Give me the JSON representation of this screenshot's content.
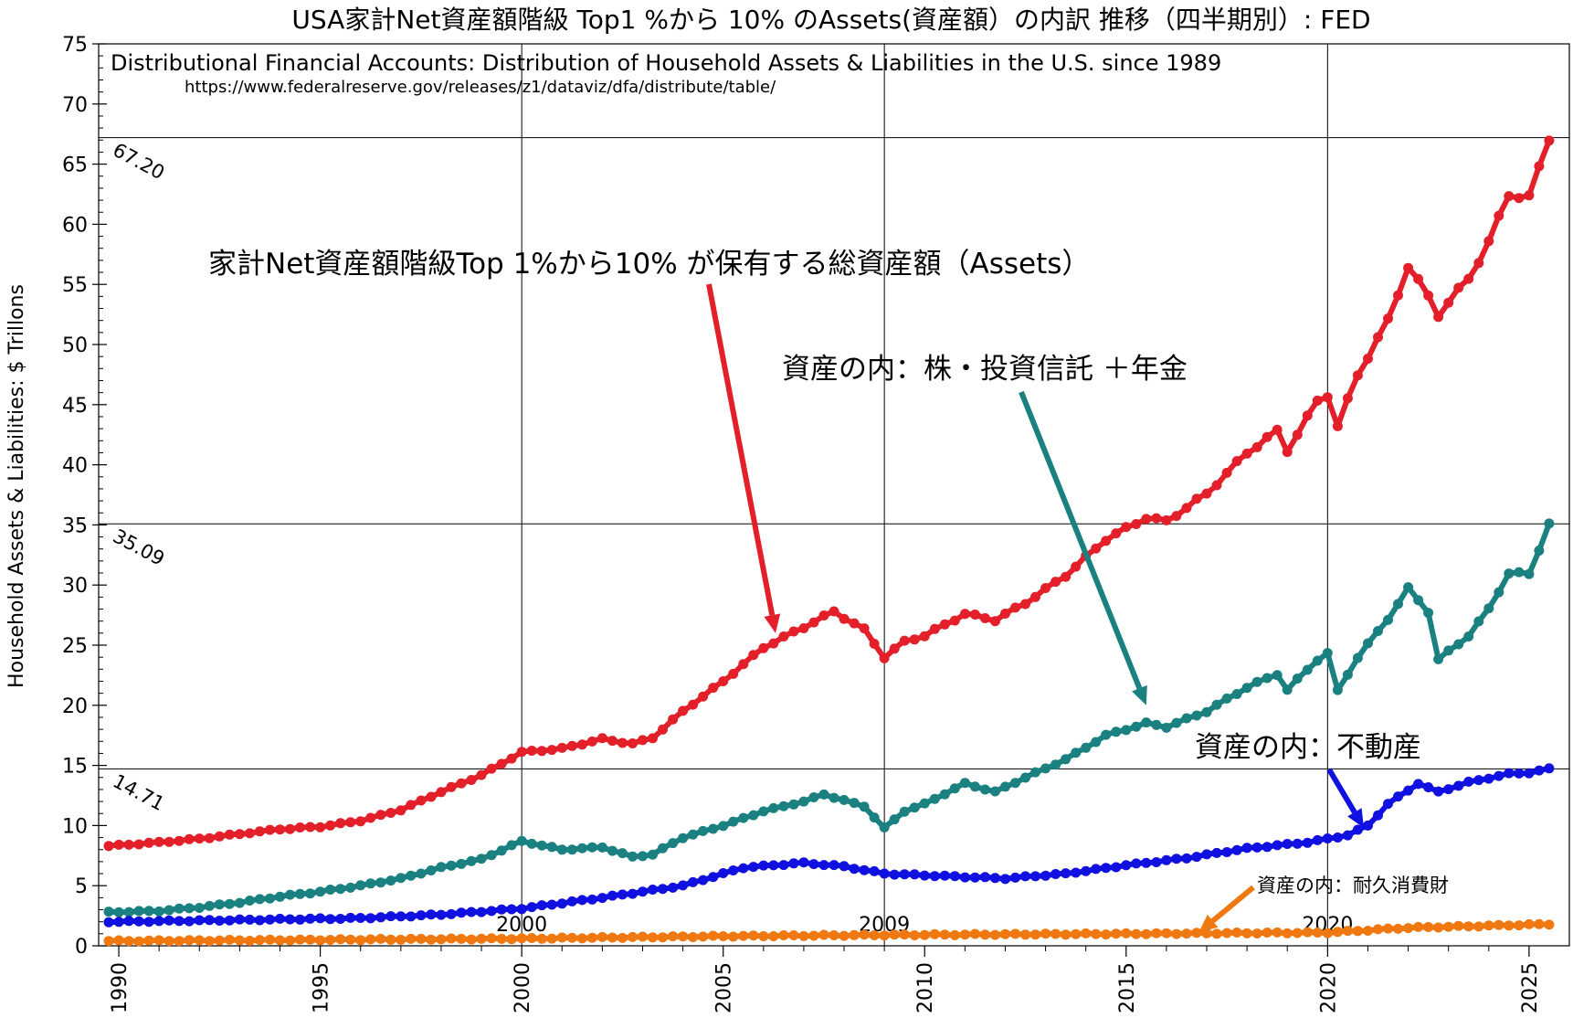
{
  "chart_data": {
    "type": "line",
    "title": "USA家計Net資産額階級 Top1 %から 10% のAssets(資産額）の内訳 推移（四半期別）: FED",
    "subtitle": "Distributional Financial Accounts: Distribution of Household Assets & Liabilities in the U.S. since 1989",
    "source_url": "https://www.federalreserve.gov/releases/z1/dataviz/dfa/distribute/table/",
    "ylabel": "Household Assets & Liabilities:  $ Trillons",
    "xlabel": "",
    "xlim": [
      1989.5,
      2026.0
    ],
    "ylim": [
      0,
      75
    ],
    "y_ticks": [
      0,
      5,
      10,
      15,
      20,
      25,
      30,
      35,
      40,
      45,
      50,
      55,
      60,
      65,
      70,
      75
    ],
    "x_ticks": [
      1990,
      1995,
      2000,
      2005,
      2010,
      2015,
      2020,
      2025
    ],
    "vertical_gridlines": [
      2000,
      2009,
      2020
    ],
    "horizontal_reference_lines": [
      {
        "value": 67.2,
        "label": "67.20"
      },
      {
        "value": 35.09,
        "label": "35.09"
      },
      {
        "value": 14.71,
        "label": "14.71"
      }
    ],
    "vline_labels": [
      {
        "x": 2000,
        "label": "2000"
      },
      {
        "x": 2009,
        "label": "2009"
      },
      {
        "x": 2020,
        "label": "2020"
      }
    ],
    "series": [
      {
        "name": "total_assets",
        "color": "#e3202a",
        "anchors": [
          [
            1989.75,
            8.3
          ],
          [
            1991.0,
            8.6
          ],
          [
            1992.0,
            8.9
          ],
          [
            1993.0,
            9.3
          ],
          [
            1994.0,
            9.7
          ],
          [
            1995.0,
            9.9
          ],
          [
            1996.0,
            10.4
          ],
          [
            1997.0,
            11.3
          ],
          [
            1998.0,
            12.8
          ],
          [
            1999.0,
            14.2
          ],
          [
            2000.0,
            16.1
          ],
          [
            2001.0,
            16.4
          ],
          [
            2002.0,
            17.2
          ],
          [
            2002.75,
            16.8
          ],
          [
            2003.25,
            17.3
          ],
          [
            2004.0,
            19.5
          ],
          [
            2005.0,
            22.0
          ],
          [
            2006.0,
            24.8
          ],
          [
            2007.0,
            26.5
          ],
          [
            2007.75,
            27.8
          ],
          [
            2008.5,
            26.3
          ],
          [
            2009.0,
            24.0
          ],
          [
            2009.5,
            25.3
          ],
          [
            2010.0,
            25.8
          ],
          [
            2011.0,
            27.6
          ],
          [
            2011.75,
            27.1
          ],
          [
            2012.5,
            28.5
          ],
          [
            2013.5,
            30.8
          ],
          [
            2014.5,
            33.8
          ],
          [
            2015.5,
            35.6
          ],
          [
            2016.0,
            35.3
          ],
          [
            2017.0,
            37.6
          ],
          [
            2018.0,
            41.0
          ],
          [
            2018.75,
            42.8
          ],
          [
            2019.0,
            41.2
          ],
          [
            2019.75,
            45.3
          ],
          [
            2020.0,
            45.8
          ],
          [
            2020.25,
            43.2
          ],
          [
            2020.75,
            47.5
          ],
          [
            2021.5,
            52.0
          ],
          [
            2022.0,
            56.5
          ],
          [
            2022.5,
            54.0
          ],
          [
            2022.75,
            52.5
          ],
          [
            2023.5,
            55.5
          ],
          [
            2024.0,
            58.5
          ],
          [
            2024.5,
            62.5
          ],
          [
            2025.0,
            62.2
          ],
          [
            2025.5,
            67.2
          ]
        ]
      },
      {
        "name": "stocks_funds_pensions",
        "color": "#1a8080",
        "anchors": [
          [
            1989.75,
            2.8
          ],
          [
            1991.0,
            2.9
          ],
          [
            1992.0,
            3.2
          ],
          [
            1993.0,
            3.6
          ],
          [
            1994.0,
            4.1
          ],
          [
            1995.0,
            4.5
          ],
          [
            1996.0,
            5.0
          ],
          [
            1997.0,
            5.6
          ],
          [
            1998.0,
            6.5
          ],
          [
            1999.0,
            7.2
          ],
          [
            2000.0,
            8.7
          ],
          [
            2001.0,
            8.0
          ],
          [
            2002.0,
            8.2
          ],
          [
            2002.75,
            7.4
          ],
          [
            2003.25,
            7.6
          ],
          [
            2004.0,
            9.0
          ],
          [
            2005.0,
            10.0
          ],
          [
            2006.0,
            11.2
          ],
          [
            2007.0,
            12.0
          ],
          [
            2007.5,
            12.6
          ],
          [
            2008.5,
            11.6
          ],
          [
            2009.0,
            9.8
          ],
          [
            2009.5,
            11.2
          ],
          [
            2010.0,
            11.8
          ],
          [
            2011.0,
            13.5
          ],
          [
            2011.75,
            12.8
          ],
          [
            2012.5,
            14.0
          ],
          [
            2013.5,
            15.5
          ],
          [
            2014.5,
            17.5
          ],
          [
            2015.5,
            18.5
          ],
          [
            2016.0,
            18.2
          ],
          [
            2017.0,
            19.5
          ],
          [
            2018.0,
            21.5
          ],
          [
            2018.75,
            22.6
          ],
          [
            2019.0,
            21.3
          ],
          [
            2019.75,
            23.8
          ],
          [
            2020.0,
            24.3
          ],
          [
            2020.25,
            21.2
          ],
          [
            2020.75,
            24.0
          ],
          [
            2021.5,
            27.2
          ],
          [
            2022.0,
            29.7
          ],
          [
            2022.5,
            27.8
          ],
          [
            2022.75,
            23.8
          ],
          [
            2023.5,
            25.8
          ],
          [
            2024.0,
            28.0
          ],
          [
            2024.5,
            31.0
          ],
          [
            2025.0,
            30.9
          ],
          [
            2025.5,
            35.09
          ]
        ]
      },
      {
        "name": "real_estate",
        "color": "#1010e0",
        "anchors": [
          [
            1989.75,
            2.0
          ],
          [
            1992.0,
            2.1
          ],
          [
            1994.0,
            2.2
          ],
          [
            1996.0,
            2.3
          ],
          [
            1998.0,
            2.6
          ],
          [
            2000.0,
            3.1
          ],
          [
            2002.0,
            4.0
          ],
          [
            2004.0,
            5.0
          ],
          [
            2005.5,
            6.5
          ],
          [
            2007.0,
            6.9
          ],
          [
            2008.0,
            6.6
          ],
          [
            2009.0,
            6.0
          ],
          [
            2010.5,
            5.8
          ],
          [
            2012.0,
            5.6
          ],
          [
            2013.5,
            6.0
          ],
          [
            2015.0,
            6.7
          ],
          [
            2016.5,
            7.3
          ],
          [
            2018.0,
            8.1
          ],
          [
            2019.5,
            8.6
          ],
          [
            2020.5,
            9.2
          ],
          [
            2021.0,
            10.0
          ],
          [
            2021.5,
            11.8
          ],
          [
            2022.25,
            13.5
          ],
          [
            2022.75,
            12.8
          ],
          [
            2023.5,
            13.6
          ],
          [
            2024.5,
            14.3
          ],
          [
            2025.0,
            14.4
          ],
          [
            2025.5,
            14.71
          ]
        ]
      },
      {
        "name": "consumer_durables",
        "color": "#f07810",
        "anchors": [
          [
            1989.75,
            0.4
          ],
          [
            1995.0,
            0.5
          ],
          [
            2000.0,
            0.6
          ],
          [
            2005.0,
            0.8
          ],
          [
            2009.0,
            0.9
          ],
          [
            2015.0,
            1.0
          ],
          [
            2020.0,
            1.1
          ],
          [
            2022.0,
            1.5
          ],
          [
            2025.5,
            1.8
          ]
        ]
      }
    ],
    "annotations": [
      {
        "text": "家計Net資産額階級Top 1%から10% が保有する総資産額（Assets）",
        "series": "total_assets",
        "color": "#e3202a",
        "arrow_to": [
          2006.3,
          26.0
        ]
      },
      {
        "text": "資産の内：株・投資信託 ＋年金",
        "series": "stocks_funds_pensions",
        "color": "#1a8080",
        "arrow_to": [
          2015.5,
          20.0
        ]
      },
      {
        "text": "資産の内：不動産",
        "series": "real_estate",
        "color": "#1010e0",
        "arrow_to": [
          2020.9,
          9.8
        ]
      },
      {
        "text": "資産の内：耐久消費財",
        "series": "consumer_durables",
        "color": "#f07810",
        "arrow_to": [
          2016.8,
          1.1
        ]
      }
    ]
  }
}
